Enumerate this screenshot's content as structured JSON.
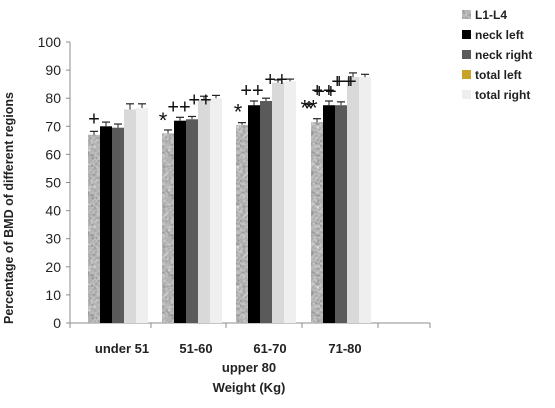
{
  "chart_data": {
    "type": "bar",
    "xlabel_line1": "upper 80",
    "xlabel_line2": "Weight (Kg)",
    "ylabel": "Percentage of BMD of  different regions",
    "ylim": [
      0,
      100
    ],
    "yticks": [
      0,
      10,
      20,
      30,
      40,
      50,
      60,
      70,
      80,
      90,
      100
    ],
    "categories": [
      "under 51",
      "51-60",
      "61-70",
      "71-80"
    ],
    "grid": false,
    "legend_position": "top-right",
    "series": [
      {
        "name": "L1-L4",
        "values": [
          67,
          67.5,
          70.5,
          71.5
        ],
        "errors": [
          1.2,
          1.2,
          0.8,
          1.2
        ],
        "pattern": "mottled",
        "color": "#9a9a9a"
      },
      {
        "name": "neck left",
        "values": [
          70,
          72,
          77.5,
          77.5
        ],
        "errors": [
          1.5,
          1.2,
          1.5,
          1.5
        ],
        "pattern": "solid",
        "color": "#000000"
      },
      {
        "name": "neck right",
        "values": [
          69.5,
          72.5,
          79,
          77.5
        ],
        "errors": [
          1.3,
          1.0,
          1.0,
          1.2
        ],
        "pattern": "solid",
        "color": "#5a5a5a"
      },
      {
        "name": "total left",
        "values": [
          76,
          79.5,
          85.5,
          87.5
        ],
        "errors": [
          2.0,
          1.2,
          1.0,
          1.5
        ],
        "pattern": "solid",
        "color": "#d9d9d9"
      },
      {
        "name": "total right",
        "values": [
          76.5,
          80,
          86,
          87.5
        ],
        "errors": [
          1.5,
          1.0,
          0.8,
          1.0
        ],
        "pattern": "solid",
        "color": "#efefef"
      }
    ],
    "legend_swatch_colors": [
      "#9a9a9a",
      "#000000",
      "#5a5a5a",
      "#c9a227",
      "#eeeeee"
    ],
    "annotations": [
      {
        "group": 0,
        "series": 0,
        "text": "+"
      },
      {
        "group": 1,
        "series": 0,
        "text": "*"
      },
      {
        "group": 1,
        "series": 1,
        "text": "++"
      },
      {
        "group": 1,
        "series": 2,
        "text": "++"
      },
      {
        "group": 2,
        "series": 0,
        "text": "*"
      },
      {
        "group": 2,
        "series": 1,
        "text": "++"
      },
      {
        "group": 2,
        "series": 2,
        "text": "++"
      },
      {
        "group": 3,
        "series": 0,
        "text": "**"
      },
      {
        "group": 3,
        "series": 1,
        "text": "++"
      },
      {
        "group": 3,
        "series": 2,
        "text": "++"
      },
      {
        "group": 4,
        "series": 0,
        "text": "*"
      },
      {
        "group": 4,
        "series": 1,
        "text": "++"
      },
      {
        "group": 4,
        "series": 2,
        "text": "++"
      }
    ]
  }
}
